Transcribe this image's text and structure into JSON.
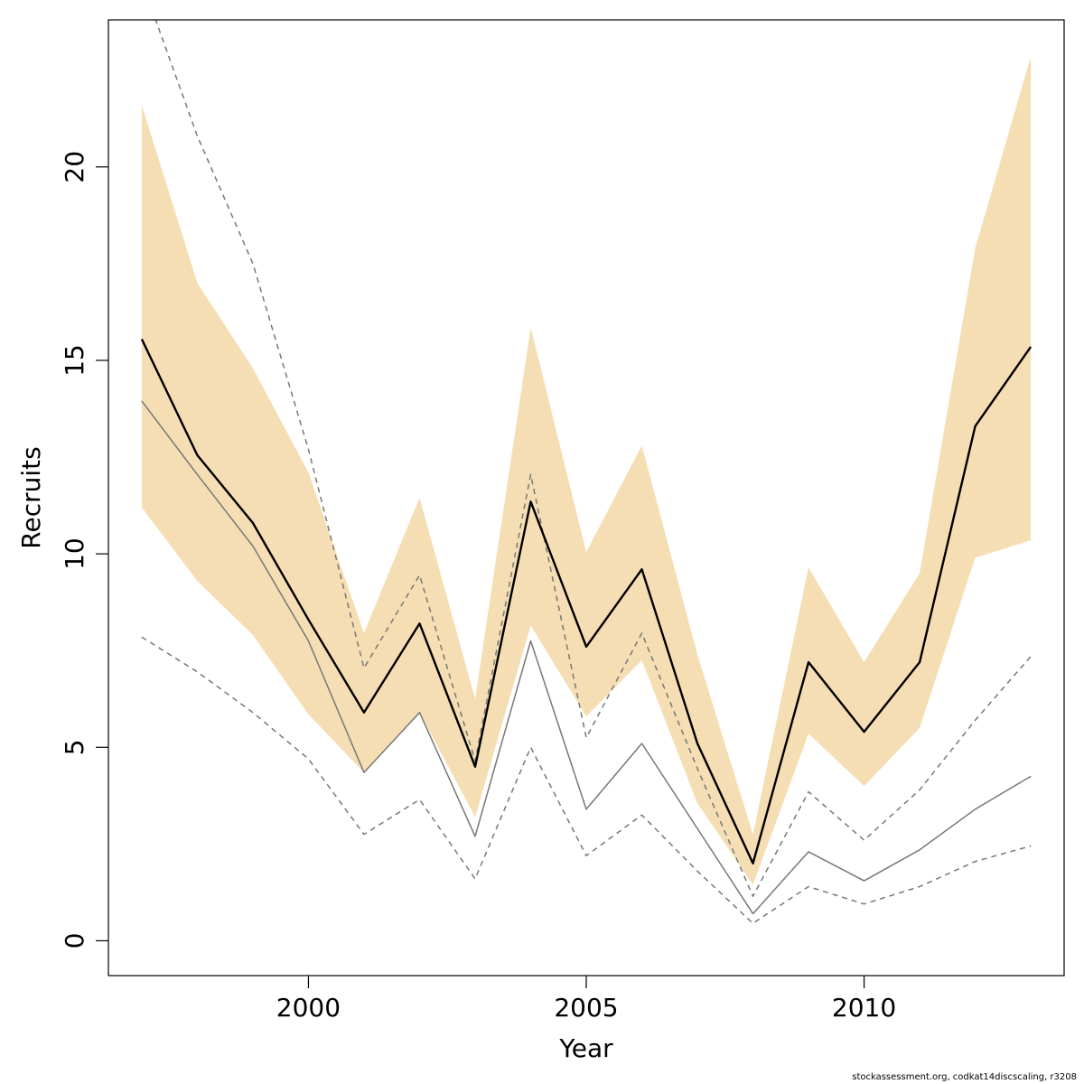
{
  "chart_data": {
    "type": "line",
    "title": "",
    "xlabel": "Year",
    "ylabel": "Recruits",
    "xlim": [
      1996.4,
      2013.6
    ],
    "ylim": [
      -0.9,
      23.8
    ],
    "x_ticks": [
      2000,
      2005,
      2010
    ],
    "y_ticks": [
      0,
      5,
      10,
      15,
      20
    ],
    "x": [
      1997,
      1998,
      1999,
      2000,
      2001,
      2002,
      2003,
      2004,
      2005,
      2006,
      2007,
      2008,
      2009,
      2010,
      2011,
      2012,
      2013
    ],
    "band": {
      "lower": [
        11.2,
        9.3,
        7.9,
        5.85,
        4.35,
        5.9,
        3.2,
        8.15,
        5.8,
        7.25,
        3.55,
        1.45,
        5.35,
        4.0,
        5.5,
        9.9,
        10.35
      ],
      "upper": [
        21.6,
        17.0,
        14.8,
        12.1,
        7.95,
        11.45,
        6.25,
        15.85,
        10.05,
        12.8,
        7.4,
        2.75,
        9.65,
        7.2,
        9.5,
        17.9,
        22.85
      ],
      "color": "#f5deb3"
    },
    "series": [
      {
        "values": [
          15.55,
          12.55,
          10.8,
          8.3,
          5.9,
          8.2,
          4.5,
          11.35,
          7.6,
          9.6,
          5.1,
          2.0,
          7.2,
          5.4,
          7.2,
          13.3,
          15.35
        ],
        "color": "#000000",
        "width": 2.4,
        "dash": "none"
      },
      {
        "values": [
          13.95,
          12.05,
          10.2,
          7.75,
          4.35,
          5.9,
          2.7,
          7.75,
          3.4,
          5.1,
          2.9,
          0.7,
          2.3,
          1.55,
          2.35,
          3.4,
          4.25
        ],
        "color": "#777777",
        "width": 1.5,
        "dash": "none"
      },
      {
        "values": [
          24.8,
          20.8,
          17.5,
          12.7,
          7.05,
          9.45,
          4.65,
          12.05,
          5.25,
          7.95,
          4.45,
          1.15,
          3.85,
          2.6,
          3.9,
          5.7,
          7.35
        ],
        "color": "#777777",
        "width": 1.5,
        "dash": "6,5"
      },
      {
        "values": [
          7.85,
          6.95,
          5.9,
          4.7,
          2.75,
          3.65,
          1.6,
          5.0,
          2.2,
          3.25,
          1.8,
          0.45,
          1.4,
          0.95,
          1.4,
          2.05,
          2.45
        ],
        "color": "#777777",
        "width": 1.5,
        "dash": "6,5"
      }
    ]
  },
  "footer_text": "stockassessment.org, codkat14discscaling, r3208"
}
